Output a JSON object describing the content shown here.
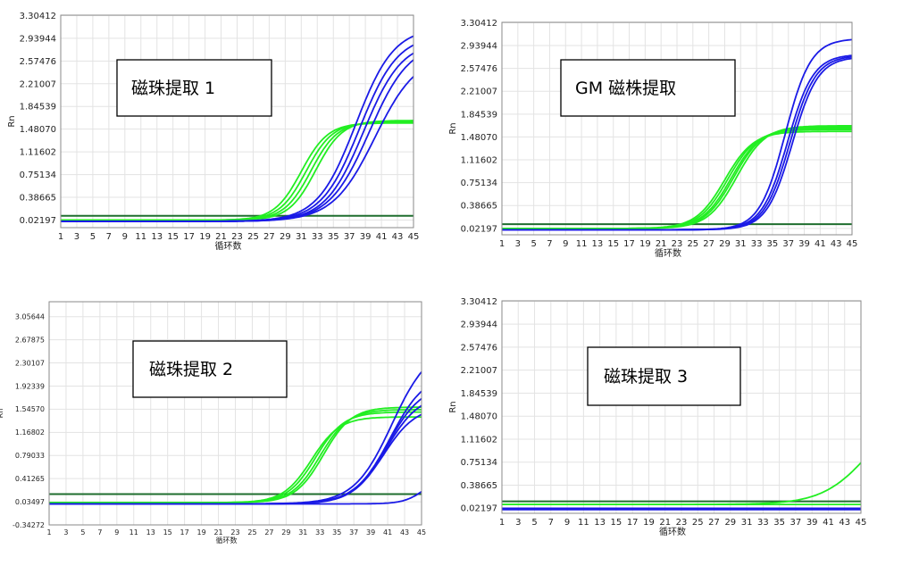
{
  "chart_data": [
    {
      "type": "line",
      "title": "磁珠提取 1",
      "xlabel": "循环数",
      "ylabel": "Rn",
      "x_ticks": [
        "1",
        "3",
        "5",
        "7",
        "9",
        "11",
        "13",
        "15",
        "17",
        "19",
        "21",
        "23",
        "25",
        "27",
        "29",
        "31",
        "33",
        "35",
        "37",
        "39",
        "41",
        "43",
        "45"
      ],
      "y_ticks": [
        "0.02197",
        "0.38665",
        "0.75134",
        "1.11602",
        "1.48070",
        "1.84539",
        "2.21007",
        "2.57476",
        "2.93944",
        "3.30412"
      ],
      "xlim": [
        1,
        45
      ],
      "ylim": [
        -0.1,
        3.31
      ],
      "grid": true,
      "threshold": 0.09,
      "series": [
        {
          "color": "#22ee22",
          "baseline": 0.02,
          "plateau": 1.56,
          "mid": 31.0,
          "k": 0.6
        },
        {
          "color": "#22ee22",
          "baseline": 0.02,
          "plateau": 1.57,
          "mid": 31.6,
          "k": 0.6
        },
        {
          "color": "#22ee22",
          "baseline": 0.02,
          "plateau": 1.58,
          "mid": 32.2,
          "k": 0.6
        },
        {
          "color": "#22ee22",
          "baseline": 0.02,
          "plateau": 1.6,
          "mid": 32.8,
          "k": 0.6
        },
        {
          "color": "#1a1ae6",
          "baseline": 0.0,
          "plateau": 3.12,
          "mid": 37.8,
          "k": 0.42
        },
        {
          "color": "#1a1ae6",
          "baseline": 0.0,
          "plateau": 3.0,
          "mid": 38.3,
          "k": 0.42
        },
        {
          "color": "#1a1ae6",
          "baseline": 0.0,
          "plateau": 2.9,
          "mid": 38.8,
          "k": 0.42
        },
        {
          "color": "#1a1ae6",
          "baseline": 0.0,
          "plateau": 2.88,
          "mid": 39.5,
          "k": 0.4
        },
        {
          "color": "#1a1ae6",
          "baseline": 0.0,
          "plateau": 2.7,
          "mid": 40.2,
          "k": 0.38
        }
      ]
    },
    {
      "type": "line",
      "title": "GM 磁株提取",
      "xlabel": "循环数",
      "ylabel": "Rn",
      "x_ticks": [
        "1",
        "3",
        "5",
        "7",
        "9",
        "11",
        "13",
        "15",
        "17",
        "19",
        "21",
        "23",
        "25",
        "27",
        "29",
        "31",
        "33",
        "35",
        "37",
        "39",
        "41",
        "43",
        "45"
      ],
      "y_ticks": [
        "0.02197",
        "0.38665",
        "0.75134",
        "1.11602",
        "1.48070",
        "1.84539",
        "2.21007",
        "2.57476",
        "2.93944",
        "3.30412"
      ],
      "xlim": [
        1,
        45
      ],
      "ylim": [
        -0.08,
        3.31
      ],
      "grid": true,
      "threshold": 0.09,
      "series": [
        {
          "color": "#22ee22",
          "baseline": 0.02,
          "plateau": 1.55,
          "mid": 29.0,
          "k": 0.55
        },
        {
          "color": "#22ee22",
          "baseline": 0.02,
          "plateau": 1.58,
          "mid": 29.4,
          "k": 0.55
        },
        {
          "color": "#22ee22",
          "baseline": 0.02,
          "plateau": 1.6,
          "mid": 29.8,
          "k": 0.55
        },
        {
          "color": "#22ee22",
          "baseline": 0.02,
          "plateau": 1.62,
          "mid": 30.1,
          "k": 0.55
        },
        {
          "color": "#22ee22",
          "baseline": 0.02,
          "plateau": 1.64,
          "mid": 30.5,
          "k": 0.55
        },
        {
          "color": "#1a1ae6",
          "baseline": 0.0,
          "plateau": 3.05,
          "mid": 36.6,
          "k": 0.62
        },
        {
          "color": "#1a1ae6",
          "baseline": 0.0,
          "plateau": 2.8,
          "mid": 36.9,
          "k": 0.62
        },
        {
          "color": "#1a1ae6",
          "baseline": 0.0,
          "plateau": 2.78,
          "mid": 37.2,
          "k": 0.62
        },
        {
          "color": "#1a1ae6",
          "baseline": 0.0,
          "plateau": 2.76,
          "mid": 37.5,
          "k": 0.62
        }
      ]
    },
    {
      "type": "line",
      "title": "磁珠提取 2",
      "xlabel": "循环数",
      "ylabel": "Rn",
      "x_ticks": [
        "1",
        "3",
        "5",
        "7",
        "9",
        "11",
        "13",
        "15",
        "17",
        "19",
        "21",
        "23",
        "25",
        "27",
        "29",
        "31",
        "33",
        "35",
        "37",
        "39",
        "41",
        "43",
        "45"
      ],
      "y_ticks": [
        "-0.34272",
        "0.03497",
        "0.41265",
        "0.79033",
        "1.16802",
        "1.54570",
        "1.92339",
        "2.30107",
        "2.67875",
        "3.05644"
      ],
      "xlim": [
        1,
        45
      ],
      "ylim": [
        -0.34272,
        3.3
      ],
      "grid": true,
      "threshold": 0.16,
      "series": [
        {
          "color": "#22ee22",
          "baseline": 0.02,
          "plateau": 1.4,
          "mid": 32.0,
          "k": 0.6
        },
        {
          "color": "#22ee22",
          "baseline": 0.02,
          "plateau": 1.48,
          "mid": 32.5,
          "k": 0.6
        },
        {
          "color": "#22ee22",
          "baseline": 0.02,
          "plateau": 1.52,
          "mid": 33.0,
          "k": 0.6
        },
        {
          "color": "#22ee22",
          "baseline": 0.02,
          "plateau": 1.56,
          "mid": 33.4,
          "k": 0.6
        },
        {
          "color": "#1a1ae6",
          "baseline": 0.0,
          "plateau": 2.6,
          "mid": 41.5,
          "k": 0.45
        },
        {
          "color": "#1a1ae6",
          "baseline": 0.0,
          "plateau": 2.15,
          "mid": 41.3,
          "k": 0.48
        },
        {
          "color": "#1a1ae6",
          "baseline": 0.0,
          "plateau": 1.95,
          "mid": 41.0,
          "k": 0.5
        },
        {
          "color": "#1a1ae6",
          "baseline": 0.0,
          "plateau": 1.8,
          "mid": 40.8,
          "k": 0.5
        },
        {
          "color": "#1a1ae6",
          "baseline": 0.0,
          "plateau": 1.6,
          "mid": 40.5,
          "k": 0.52
        },
        {
          "color": "#1a1ae6",
          "baseline": 0.0,
          "plateau": 0.5,
          "mid": 45.5,
          "k": 0.8
        }
      ]
    },
    {
      "type": "line",
      "title": "磁珠提取 3",
      "xlabel": "循环数",
      "ylabel": "Rn",
      "x_ticks": [
        "1",
        "3",
        "5",
        "7",
        "9",
        "11",
        "13",
        "15",
        "17",
        "19",
        "21",
        "23",
        "25",
        "27",
        "29",
        "31",
        "33",
        "35",
        "37",
        "39",
        "41",
        "43",
        "45"
      ],
      "y_ticks": [
        "0.02197",
        "0.38665",
        "0.75134",
        "1.11602",
        "1.48070",
        "1.84539",
        "2.21007",
        "2.57476",
        "2.93944",
        "3.30412"
      ],
      "xlim": [
        1,
        45
      ],
      "ylim": [
        -0.06,
        3.31
      ],
      "grid": true,
      "threshold": 0.13,
      "series": [
        {
          "color": "#22ee22",
          "baseline": 0.08,
          "plateau": 1.6,
          "mid": 46.0,
          "k": 0.35
        },
        {
          "color": "#22ee22",
          "baseline": 0.08,
          "plateau": 0.0,
          "mid": 40.0,
          "k": 0.5
        },
        {
          "color": "#1a1ae6",
          "baseline": 0.02,
          "plateau": 0.0,
          "mid": 40.0,
          "k": 0.5
        },
        {
          "color": "#1a1ae6",
          "baseline": 0.01,
          "plateau": 0.0,
          "mid": 40.0,
          "k": 0.5
        },
        {
          "color": "#1a1ae6",
          "baseline": 0.0,
          "plateau": 0.0,
          "mid": 40.0,
          "k": 0.5
        }
      ]
    }
  ]
}
